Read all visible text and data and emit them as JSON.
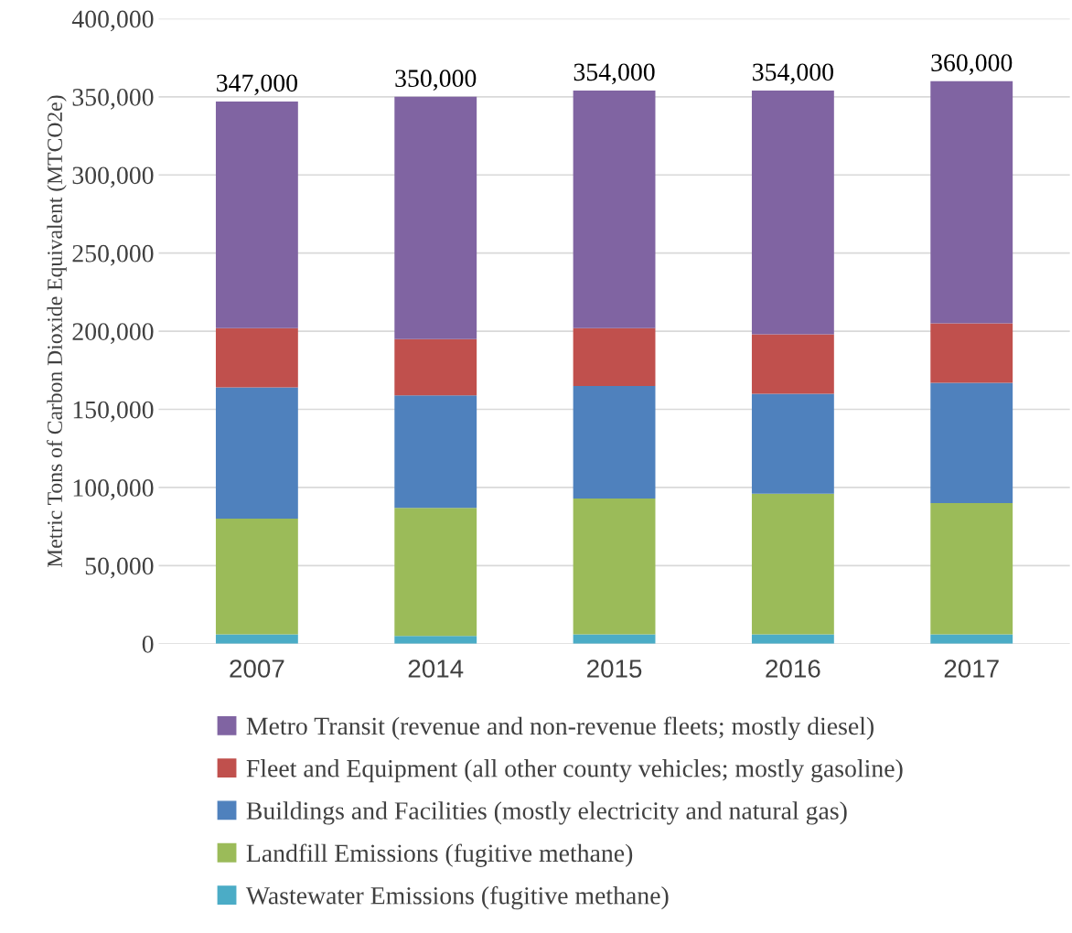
{
  "chart_data": {
    "type": "bar",
    "stacked": true,
    "ylabel": "Metric Tons of Carbon Dioxide Equivalent (MTCO2e)",
    "categories": [
      "2007",
      "2014",
      "2015",
      "2016",
      "2017"
    ],
    "series": [
      {
        "name": "Wastewater Emissions (fugitive methane)",
        "color": "#4bacc6",
        "values": [
          6000,
          5000,
          6000,
          6000,
          6000
        ]
      },
      {
        "name": "Landfill Emissions (fugitive methane)",
        "color": "#9bbb59",
        "values": [
          74000,
          82000,
          87000,
          90000,
          84000
        ]
      },
      {
        "name": "Buildings and Facilities (mostly electricity and natural gas)",
        "color": "#4f81bd",
        "values": [
          84000,
          72000,
          72000,
          64000,
          77000
        ]
      },
      {
        "name": "Fleet and Equipment (all other county vehicles; mostly gasoline)",
        "color": "#c0504d",
        "values": [
          38000,
          36000,
          37000,
          38000,
          38000
        ]
      },
      {
        "name": "Metro Transit (revenue and non-revenue fleets; mostly diesel)",
        "color": "#8064a2",
        "values": [
          145000,
          155000,
          152000,
          156000,
          155000
        ]
      }
    ],
    "totals": [
      "347,000",
      "350,000",
      "354,000",
      "354,000",
      "360,000"
    ],
    "ylim": [
      0,
      400000
    ],
    "yticks": [
      {
        "value": 0,
        "label": "0"
      },
      {
        "value": 50000,
        "label": "50,000"
      },
      {
        "value": 100000,
        "label": "100,000"
      },
      {
        "value": 150000,
        "label": "150,000"
      },
      {
        "value": 200000,
        "label": "200,000"
      },
      {
        "value": 250000,
        "label": "250,000"
      },
      {
        "value": 300000,
        "label": "300,000"
      },
      {
        "value": 350000,
        "label": "350,000"
      },
      {
        "value": 400000,
        "label": "400,000"
      }
    ],
    "grid": "y",
    "legend": "bottom"
  }
}
